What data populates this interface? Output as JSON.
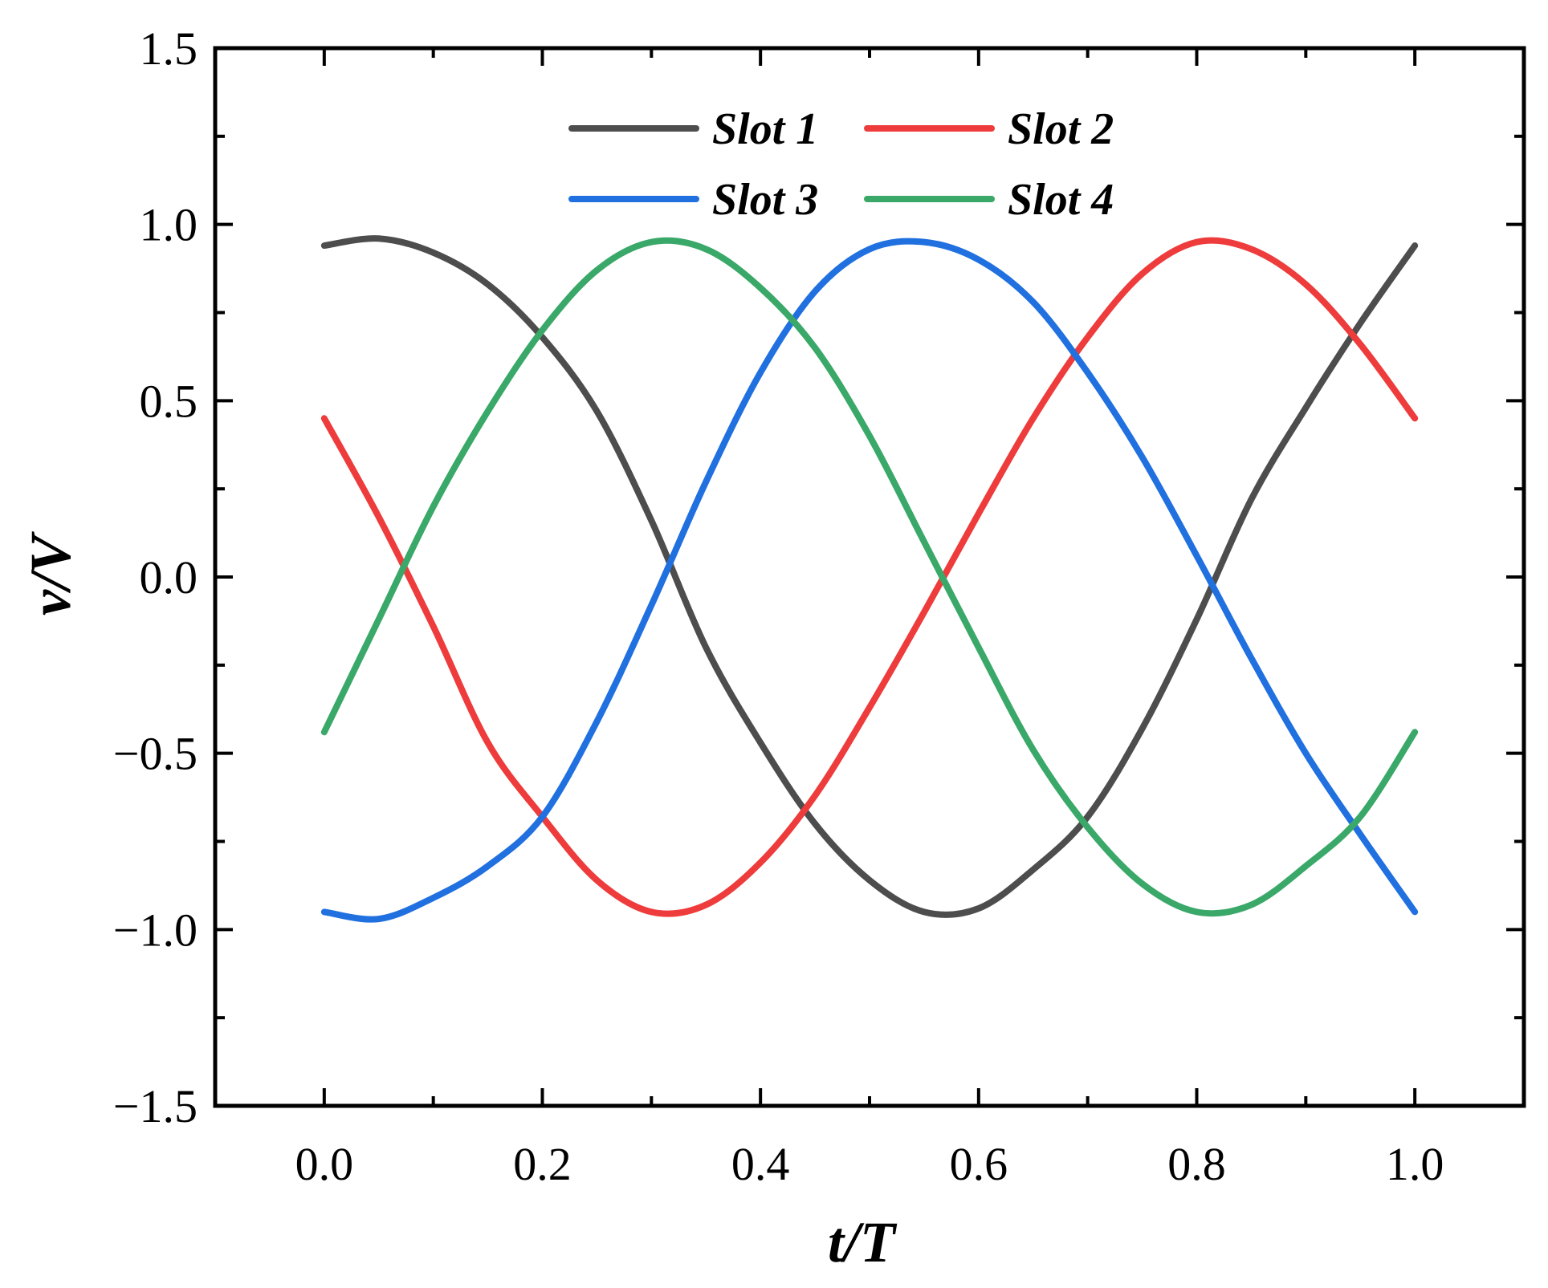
{
  "chart_data": {
    "type": "line",
    "title": "",
    "xlabel": "t/T",
    "ylabel": "v/V",
    "xlim": [
      -0.1,
      1.1
    ],
    "ylim": [
      -1.5,
      1.5
    ],
    "xticks": [
      0.0,
      0.2,
      0.4,
      0.6,
      0.8,
      1.0
    ],
    "xtick_labels": [
      "0.0",
      "0.2",
      "0.4",
      "0.6",
      "0.8",
      "1.0"
    ],
    "yticks": [
      -1.5,
      -1.0,
      -0.5,
      0.0,
      0.5,
      1.0,
      1.5
    ],
    "ytick_labels": [
      "−1.5",
      "−1.0",
      "−0.5",
      "0.0",
      "0.5",
      "1.0",
      "1.5"
    ],
    "grid": false,
    "legend_position": "top-center",
    "series": [
      {
        "name": "Slot 1",
        "color": "#4d4d4d",
        "x": [
          0.0,
          0.05,
          0.1,
          0.15,
          0.2,
          0.25,
          0.3,
          0.35,
          0.4,
          0.45,
          0.5,
          0.55,
          0.6,
          0.65,
          0.7,
          0.75,
          0.8,
          0.85,
          0.9,
          0.95,
          1.0
        ],
        "y": [
          0.94,
          0.96,
          0.92,
          0.83,
          0.68,
          0.47,
          0.16,
          -0.2,
          -0.47,
          -0.7,
          -0.86,
          -0.95,
          -0.94,
          -0.83,
          -0.68,
          -0.43,
          -0.12,
          0.22,
          0.48,
          0.72,
          0.94
        ]
      },
      {
        "name": "Slot 2",
        "color": "#ee3b3b",
        "x": [
          0.0,
          0.05,
          0.1,
          0.15,
          0.2,
          0.25,
          0.3,
          0.35,
          0.4,
          0.45,
          0.5,
          0.55,
          0.6,
          0.65,
          0.7,
          0.75,
          0.8,
          0.85,
          0.9,
          0.95,
          1.0
        ],
        "y": [
          0.45,
          0.17,
          -0.14,
          -0.47,
          -0.68,
          -0.86,
          -0.95,
          -0.93,
          -0.81,
          -0.62,
          -0.37,
          -0.1,
          0.18,
          0.45,
          0.68,
          0.86,
          0.95,
          0.93,
          0.83,
          0.66,
          0.45
        ]
      },
      {
        "name": "Slot 3",
        "color": "#2070e0",
        "x": [
          0.0,
          0.05,
          0.1,
          0.15,
          0.2,
          0.25,
          0.3,
          0.35,
          0.4,
          0.45,
          0.5,
          0.55,
          0.6,
          0.65,
          0.7,
          0.75,
          0.8,
          0.85,
          0.9,
          0.95,
          1.0
        ],
        "y": [
          -0.95,
          -0.97,
          -0.91,
          -0.82,
          -0.68,
          -0.41,
          -0.08,
          0.27,
          0.58,
          0.81,
          0.93,
          0.95,
          0.9,
          0.78,
          0.58,
          0.34,
          0.06,
          -0.23,
          -0.5,
          -0.73,
          -0.95
        ]
      },
      {
        "name": "Slot 4",
        "color": "#3aa868",
        "x": [
          0.0,
          0.05,
          0.1,
          0.15,
          0.2,
          0.25,
          0.3,
          0.35,
          0.4,
          0.45,
          0.5,
          0.55,
          0.6,
          0.65,
          0.7,
          0.75,
          0.8,
          0.85,
          0.9,
          0.95,
          1.0
        ],
        "y": [
          -0.44,
          -0.12,
          0.2,
          0.47,
          0.7,
          0.87,
          0.95,
          0.93,
          0.82,
          0.65,
          0.4,
          0.1,
          -0.2,
          -0.49,
          -0.71,
          -0.87,
          -0.95,
          -0.93,
          -0.82,
          -0.68,
          -0.44
        ]
      }
    ]
  }
}
